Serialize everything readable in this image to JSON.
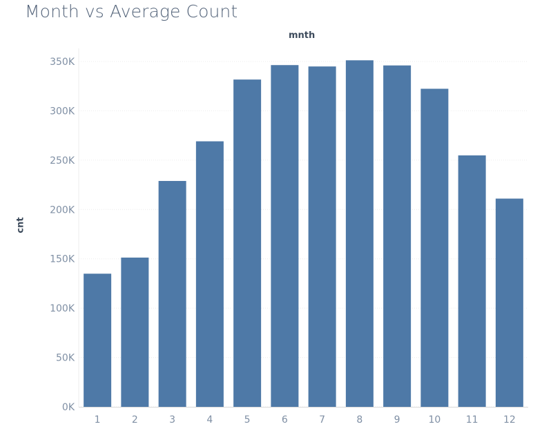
{
  "title": "Month vs Average Count",
  "chart_data": {
    "type": "bar",
    "title": "Month vs Average Count",
    "column_header": "mnth",
    "xlabel": "",
    "ylabel": "cnt",
    "categories": [
      "1",
      "2",
      "3",
      "4",
      "5",
      "6",
      "7",
      "8",
      "9",
      "10",
      "11",
      "12"
    ],
    "values": [
      134933,
      151266,
      228920,
      269094,
      331686,
      346342,
      344948,
      351194,
      345991,
      322352,
      254831,
      211036
    ],
    "ylim": [
      0,
      350000
    ],
    "yticks": [
      0,
      50000,
      100000,
      150000,
      200000,
      250000,
      300000,
      350000
    ],
    "ytick_labels": [
      "0K",
      "50K",
      "100K",
      "150K",
      "200K",
      "250K",
      "300K",
      "350K"
    ],
    "grid": true,
    "bar_color": "#4e79a7"
  }
}
